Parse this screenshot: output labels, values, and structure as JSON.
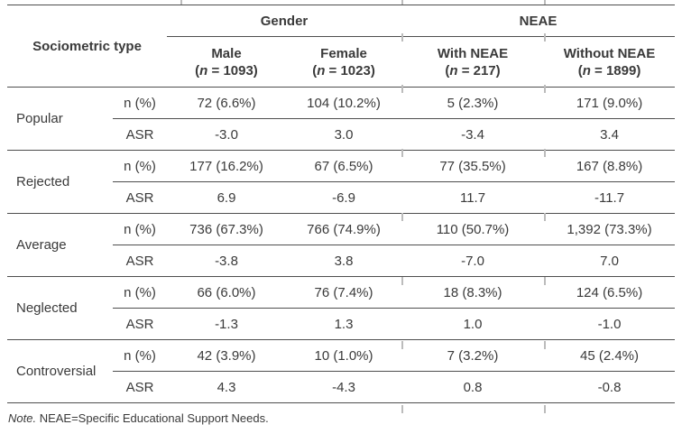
{
  "table": {
    "corner_header": "Sociometric type",
    "group_headers": {
      "gender": "Gender",
      "neae": "NEAE"
    },
    "subheaders": [
      {
        "title": "Male",
        "open": "(",
        "n": "n",
        "rest": " = 1093)"
      },
      {
        "title": "Female",
        "open": "(",
        "n": "n",
        "rest": " = 1023)"
      },
      {
        "title": "With NEAE",
        "open": "(",
        "n": "n",
        "rest": " = 217)"
      },
      {
        "title": "Without NEAE",
        "open": "(",
        "n": "n",
        "rest": " = 1899)"
      }
    ],
    "stat_labels": {
      "n_pct": "n (%)",
      "asr": "ASR"
    },
    "rows": [
      {
        "type": "Popular",
        "n_pct": [
          "72 (6.6%)",
          "104 (10.2%)",
          "5 (2.3%)",
          "171 (9.0%)"
        ],
        "asr": [
          "-3.0",
          "3.0",
          "-3.4",
          "3.4"
        ]
      },
      {
        "type": "Rejected",
        "n_pct": [
          "177 (16.2%)",
          "67 (6.5%)",
          "77 (35.5%)",
          "167 (8.8%)"
        ],
        "asr": [
          "6.9",
          "-6.9",
          "11.7",
          "-11.7"
        ]
      },
      {
        "type": "Average",
        "n_pct": [
          "736 (67.3%)",
          "766 (74.9%)",
          "110 (50.7%)",
          "1,392 (73.3%)"
        ],
        "asr": [
          "-3.8",
          "3.8",
          "-7.0",
          "7.0"
        ]
      },
      {
        "type": "Neglected",
        "n_pct": [
          "66 (6.0%)",
          "76 (7.4%)",
          "18 (8.3%)",
          "124 (6.5%)"
        ],
        "asr": [
          "-1.3",
          "1.3",
          "1.0",
          "-1.0"
        ]
      },
      {
        "type": "Controversial",
        "n_pct": [
          "42 (3.9%)",
          "10 (1.0%)",
          "7 (3.2%)",
          "45 (2.4%)"
        ],
        "asr": [
          "4.3",
          "-4.3",
          "0.8",
          "-0.8"
        ]
      }
    ],
    "note": {
      "prefix": "Note.",
      "rest": " NEAE=Specific Educational Support Needs."
    }
  }
}
